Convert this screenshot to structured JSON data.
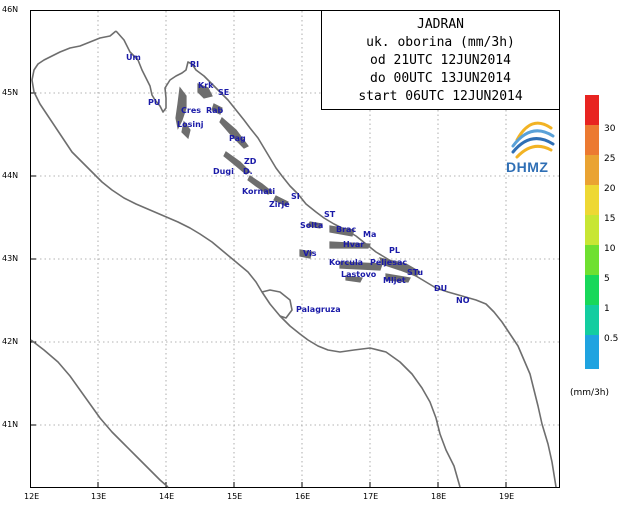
{
  "map": {
    "lat_labels": [
      "46N",
      "45N",
      "44N",
      "43N",
      "42N",
      "41N"
    ],
    "lon_labels": [
      "12E",
      "13E",
      "14E",
      "15E",
      "16E",
      "17E",
      "18E",
      "19E"
    ]
  },
  "title_box": {
    "lines": [
      "JADRAN",
      "uk. oborina (mm/3h)",
      "od 21UTC 12JUN2014",
      "do 00UTC 13JUN2014",
      "start 06UTC 12JUN2014"
    ]
  },
  "logo": {
    "text": "DHMZ"
  },
  "places": [
    {
      "id": "um",
      "label": "Um"
    },
    {
      "id": "ri",
      "label": "RI"
    },
    {
      "id": "krk",
      "label": "Krk"
    },
    {
      "id": "se",
      "label": "SE"
    },
    {
      "id": "pu",
      "label": "PU"
    },
    {
      "id": "cres",
      "label": "Cres"
    },
    {
      "id": "rab",
      "label": "Rab"
    },
    {
      "id": "losinj",
      "label": "Losinj"
    },
    {
      "id": "pag",
      "label": "Pag"
    },
    {
      "id": "zd",
      "label": "ZD"
    },
    {
      "id": "dugi",
      "label": "Dugi"
    },
    {
      "id": "d",
      "label": "D."
    },
    {
      "id": "kornati",
      "label": "Kornati"
    },
    {
      "id": "si",
      "label": "SI"
    },
    {
      "id": "zirje",
      "label": "Zirje"
    },
    {
      "id": "st",
      "label": "ST"
    },
    {
      "id": "solta",
      "label": "Solta"
    },
    {
      "id": "brac",
      "label": "Brac"
    },
    {
      "id": "ma",
      "label": "Ma"
    },
    {
      "id": "hvar",
      "label": "Hvar"
    },
    {
      "id": "pl",
      "label": "PL"
    },
    {
      "id": "vis",
      "label": "Vis"
    },
    {
      "id": "korcula",
      "label": "Korcula"
    },
    {
      "id": "peljesac",
      "label": "Peljesac"
    },
    {
      "id": "lastovo",
      "label": "Lastovo"
    },
    {
      "id": "stu",
      "label": "STu"
    },
    {
      "id": "mljet",
      "label": "Mljet"
    },
    {
      "id": "du",
      "label": "DU"
    },
    {
      "id": "no",
      "label": "NO"
    },
    {
      "id": "palagruza",
      "label": "Palagruza"
    }
  ],
  "legend": {
    "unit": "(mm/3h)",
    "levels": [
      {
        "label": "0.5",
        "color": "#1fa3e0"
      },
      {
        "label": "1",
        "color": "#13cda0"
      },
      {
        "label": "5",
        "color": "#18d85a"
      },
      {
        "label": "10",
        "color": "#6fe030"
      },
      {
        "label": "15",
        "color": "#c8e634"
      },
      {
        "label": "20",
        "color": "#eed834"
      },
      {
        "label": "25",
        "color": "#eaa332"
      },
      {
        "label": "30",
        "color": "#ec7a31"
      },
      {
        "label": "",
        "color": "#e82421"
      }
    ]
  },
  "colors": {
    "coast": "#6e6e6e",
    "grid": "#9a9a9a",
    "place": "#1a1aa8"
  }
}
